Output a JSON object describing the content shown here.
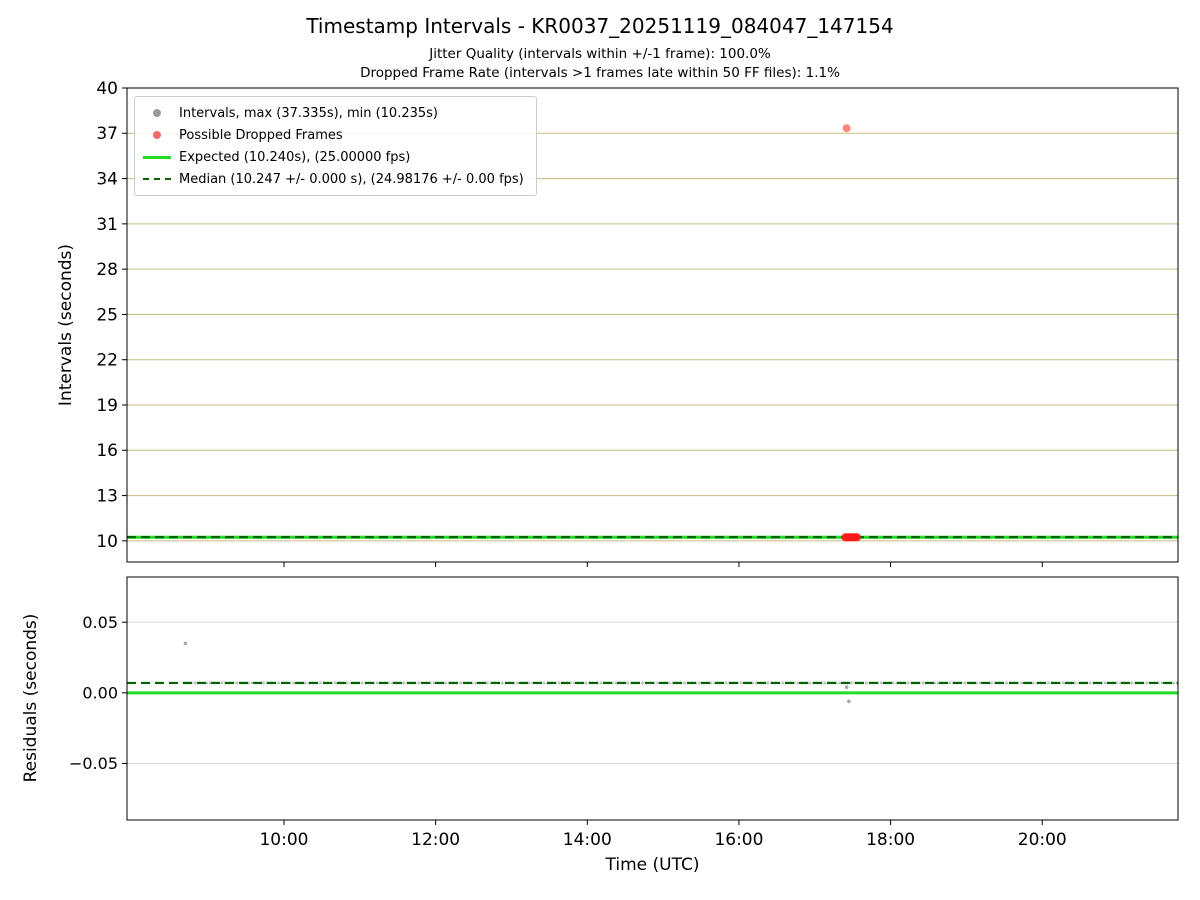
{
  "title": "Timestamp Intervals - KR0037_20251119_084047_147154",
  "subtitle1": "Jitter Quality (intervals within +/-1 frame): 100.0%",
  "subtitle2": "Dropped Frame Rate (intervals >1 frames late within 50 FF files): 1.1%",
  "colors": {
    "expected_line": "#22dd22",
    "median_line": "#006400",
    "intervals_points": "#8c8c8c",
    "dropped_points": "#ff3b30",
    "grid_top": "#c9ba7e",
    "grid_bottom": "#d9d9d9",
    "spine": "#000000"
  },
  "legend": {
    "entries": [
      {
        "marker": "dot",
        "color": "#9a9a9a",
        "label": "Intervals, max (37.335s), min (10.235s)"
      },
      {
        "marker": "dot",
        "color": "#f26a6a",
        "label": "Possible Dropped Frames"
      },
      {
        "marker": "line",
        "color": "#22dd22",
        "label": "Expected (10.240s), (25.00000 fps)"
      },
      {
        "marker": "dashline",
        "color": "#006400",
        "label": "Median (10.247 +/- 0.000 s), (24.98176 +/- 0.00 fps)"
      }
    ]
  },
  "chart_data": [
    {
      "type": "scatter",
      "name": "intervals-plot",
      "title": "Timestamp Intervals - KR0037_20251119_084047_147154",
      "ylabel": "Intervals (seconds)",
      "ylim": [
        8.6,
        40
      ],
      "yticks": [
        {
          "v": 10,
          "label": "10"
        },
        {
          "v": 13,
          "label": "13"
        },
        {
          "v": 16,
          "label": "16"
        },
        {
          "v": 19,
          "label": "19"
        },
        {
          "v": 22,
          "label": "22"
        },
        {
          "v": 25,
          "label": "25"
        },
        {
          "v": 28,
          "label": "28"
        },
        {
          "v": 31,
          "label": "31"
        },
        {
          "v": 34,
          "label": "34"
        },
        {
          "v": 37,
          "label": "37"
        },
        {
          "v": 40,
          "label": "40"
        }
      ],
      "xlim_hours": [
        7.93,
        21.79
      ],
      "xticks": [
        {
          "h": 10,
          "label": "10:00"
        },
        {
          "h": 12,
          "label": "12:00"
        },
        {
          "h": 14,
          "label": "14:00"
        },
        {
          "h": 16,
          "label": "16:00"
        },
        {
          "h": 18,
          "label": "18:00"
        },
        {
          "h": 20,
          "label": "20:00"
        }
      ],
      "show_xtick_labels": false,
      "grid": "horizontal",
      "grid_color": "#c9ba7e",
      "stats": {
        "max_interval_s": 37.335,
        "min_interval_s": 10.235,
        "expected_s": 10.24,
        "expected_fps": 25.0,
        "median_s": 10.247,
        "median_err_s": 0.0,
        "median_fps": 24.98176,
        "median_fps_err": 0.0,
        "jitter_quality_pct": 100.0,
        "dropped_frame_rate_pct": 1.1,
        "ff_files": 50
      },
      "series": [
        {
          "name": "intervals-band",
          "kind": "band",
          "color": "#808080",
          "opacity": 0.5,
          "start_h": 8.68,
          "end_h": 21.79,
          "value": 10.247,
          "r": 1.6,
          "step_h": 0.05
        },
        {
          "name": "expected-line",
          "kind": "hline",
          "y": 10.24,
          "color": "#22dd22",
          "width": 3
        },
        {
          "name": "median-line",
          "kind": "hline",
          "y": 10.247,
          "color": "#006400",
          "width": 2.2,
          "dash": "9 5"
        },
        {
          "name": "dropped-frame-outlier",
          "kind": "points",
          "color": "#ff3b30",
          "opacity": 0.62,
          "r": 4,
          "points": [
            {
              "h": 17.42,
              "v": 37.335
            }
          ]
        },
        {
          "name": "dropped-frame-cluster",
          "kind": "cluster",
          "color": "#ff1a1a",
          "opacity": 0.7,
          "start_h": 17.4,
          "end_h": 17.56,
          "value": 10.24,
          "r": 4,
          "count": 12
        }
      ]
    },
    {
      "type": "scatter",
      "name": "residuals-plot",
      "ylabel": "Residuals (seconds)",
      "xlabel": "Time (UTC)",
      "ylim": [
        -0.09,
        0.082
      ],
      "yticks": [
        {
          "v": -0.05,
          "label": "−0.05"
        },
        {
          "v": 0.0,
          "label": "0.00"
        },
        {
          "v": 0.05,
          "label": "0.05"
        }
      ],
      "xlim_hours": [
        7.93,
        21.79
      ],
      "xticks": [
        {
          "h": 10,
          "label": "10:00"
        },
        {
          "h": 12,
          "label": "12:00"
        },
        {
          "h": 14,
          "label": "14:00"
        },
        {
          "h": 16,
          "label": "16:00"
        },
        {
          "h": 18,
          "label": "18:00"
        },
        {
          "h": 20,
          "label": "20:00"
        }
      ],
      "show_xtick_labels": true,
      "grid": "horizontal",
      "grid_color": "#d9d9d9",
      "series": [
        {
          "name": "residuals-band",
          "kind": "band",
          "color": "#808080",
          "opacity": 0.5,
          "start_h": 8.68,
          "end_h": 21.79,
          "value": 0.007,
          "r": 1.5,
          "step_h": 0.05
        },
        {
          "name": "residual-outliers",
          "kind": "points",
          "color": "#999999",
          "opacity": 0.85,
          "r": 1.8,
          "points": [
            {
              "h": 8.7,
              "v": 0.035
            },
            {
              "h": 17.42,
              "v": 0.004
            },
            {
              "h": 17.45,
              "v": -0.006
            }
          ]
        },
        {
          "name": "expected-residual-line",
          "kind": "hline",
          "y": 0.0,
          "color": "#22dd22",
          "width": 3
        },
        {
          "name": "median-residual-line",
          "kind": "hline",
          "y": 0.007,
          "color": "#006400",
          "width": 2.2,
          "dash": "9 5"
        }
      ]
    }
  ]
}
